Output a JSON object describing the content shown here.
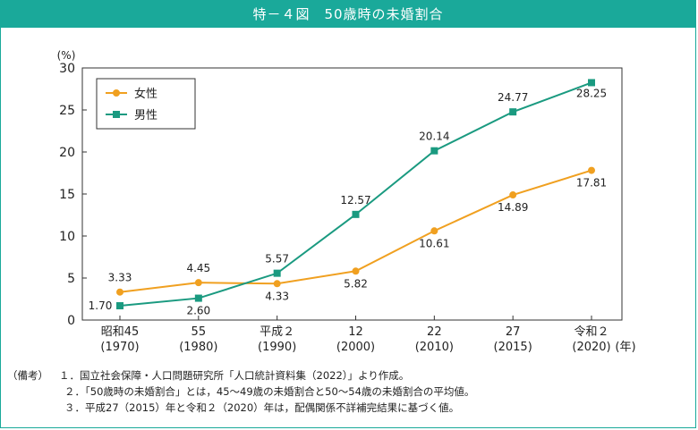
{
  "title": "特－４図　50歳時の未婚割合",
  "colors": {
    "header": "#1aa99a",
    "female": "#f0a020",
    "male": "#1a9a80",
    "axis": "#333333"
  },
  "chart_data": {
    "type": "line",
    "categories": [
      "昭和45\n(1970)",
      "55\n(1980)",
      "平成２\n(1990)",
      "12\n(2000)",
      "22\n(2010)",
      "27\n(2015)",
      "令和２\n(2020)"
    ],
    "category_lines": [
      [
        "昭和45",
        "(1970)"
      ],
      [
        "55",
        "(1980)"
      ],
      [
        "平成２",
        "(1990)"
      ],
      [
        "12",
        "(2000)"
      ],
      [
        "22",
        "(2010)"
      ],
      [
        "27",
        "(2015)"
      ],
      [
        "令和２",
        "(2020)"
      ]
    ],
    "series": [
      {
        "name": "女性",
        "marker": "circle",
        "values": [
          3.33,
          4.45,
          4.33,
          5.82,
          10.61,
          14.89,
          17.81
        ],
        "labels": [
          "3.33",
          "4.45",
          "4.33",
          "5.82",
          "10.61",
          "14.89",
          "17.81"
        ]
      },
      {
        "name": "男性",
        "marker": "square",
        "values": [
          1.7,
          2.6,
          5.57,
          12.57,
          20.14,
          24.77,
          28.25
        ],
        "labels": [
          "1.70",
          "2.60",
          "5.57",
          "12.57",
          "20.14",
          "24.77",
          "28.25"
        ]
      }
    ],
    "ylabel": "(%)",
    "xlabel": "(年)",
    "ylim": [
      0,
      30
    ],
    "yticks": [
      "0",
      "5",
      "10",
      "15",
      "20",
      "25",
      "30"
    ],
    "legend_position": "top-left",
    "grid": false
  },
  "notes": {
    "label": "（備考）",
    "lines": [
      "１．国立社会保障・人口問題研究所「人口統計資料集（2022）」より作成。",
      "２．「50歳時の未婚割合」とは，45～49歳の未婚割合と50～54歳の未婚割合の平均値。",
      "３．平成27（2015）年と令和２（2020）年は，配偶関係不詳補完結果に基づく値。"
    ]
  }
}
